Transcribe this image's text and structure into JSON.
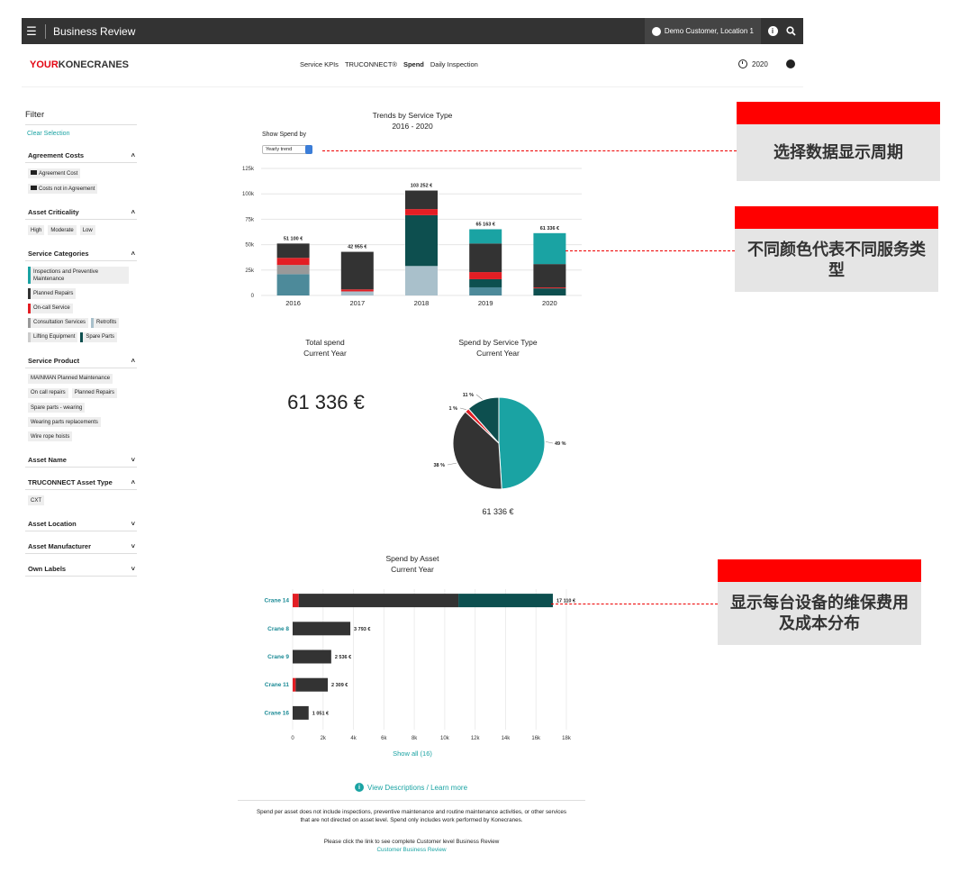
{
  "topbar": {
    "title": "Business Review",
    "customer": "Demo Customer, Location 1"
  },
  "header": {
    "logo_red": "YOUR",
    "logo_dark": "KONECRANES",
    "nav": [
      "Service KPIs",
      "TRUCONNECT®",
      "Spend",
      "Daily Inspection"
    ],
    "year": "2020"
  },
  "sidebar": {
    "title": "Filter",
    "clear": "Clear Selection",
    "agreement": {
      "title": "Agreement Costs",
      "items": [
        "Agreement Cost",
        "Costs not in Agreement"
      ]
    },
    "criticality": {
      "title": "Asset Criticality",
      "items": [
        "High",
        "Moderate",
        "Low"
      ]
    },
    "categories": {
      "title": "Service Categories",
      "items": [
        {
          "label": "Inspections and Preventive Maintenance",
          "color": "#1aa3a3"
        },
        {
          "label": "Planned Repairs",
          "color": "#333333"
        },
        {
          "label": "On-call Service",
          "color": "#e31e24"
        },
        {
          "label": "Consultation Services",
          "color": "#999999"
        },
        {
          "label": "Retrofits",
          "color": "#a9c0cb"
        },
        {
          "label": "Lifting Equipment",
          "color": "#cccccc"
        },
        {
          "label": "Spare Parts",
          "color": "#0d4f4f"
        }
      ]
    },
    "product": {
      "title": "Service Product",
      "items": [
        "MAINMAN Planned Maintenance",
        "On call repairs",
        "Planned Repairs",
        "Spare parts - wearing",
        "Wearing parts replacements",
        "Wire rope hoists"
      ]
    },
    "asset_name": {
      "title": "Asset Name"
    },
    "asset_type": {
      "title": "TRUCONNECT Asset Type",
      "items": [
        "CXT"
      ]
    },
    "asset_location": {
      "title": "Asset Location"
    },
    "asset_manufacturer": {
      "title": "Asset Manufacturer"
    },
    "own_labels": {
      "title": "Own Labels"
    }
  },
  "trends": {
    "title": "Trends by Service Type",
    "subtitle": "2016 - 2020",
    "show_by_label": "Show Spend by",
    "show_by_value": "Yearly trend"
  },
  "total": {
    "title": "Total spend",
    "subtitle": "Current Year",
    "value": "61 336 €"
  },
  "pie": {
    "title": "Spend by Service Type",
    "subtitle": "Current Year",
    "total": "61 336 €"
  },
  "asset": {
    "title": "Spend by Asset",
    "subtitle": "Current Year",
    "show_all": "Show all (16)"
  },
  "footer": {
    "view_desc": "View Descriptions / Learn more",
    "note1": "Spend per asset does not include inspections, preventive maintenance and routine maintenance activities, or other services",
    "note2": "that are not directed on asset level. Spend only includes work performed by Konecranes.",
    "link_text": "Please click the link to see complete Customer level Business Review",
    "link": "Customer Business Review"
  },
  "callouts": [
    "选择数据显示周期",
    "不同颜色代表不同服务类型",
    "显示每台设备的维保费用及成本分布"
  ],
  "chart_data": [
    {
      "type": "bar",
      "stacked": true,
      "title": "Trends by Service Type",
      "subtitle": "2016 - 2020",
      "categories": [
        "2016",
        "2017",
        "2018",
        "2019",
        "2020"
      ],
      "ylim": [
        0,
        125000
      ],
      "yticks": [
        0,
        25000,
        50000,
        75000,
        100000,
        125000
      ],
      "ytick_labels": [
        "0",
        "25k",
        "50k",
        "75k",
        "100k",
        "125k"
      ],
      "totals": [
        51100,
        42955,
        103252,
        65163,
        61336
      ],
      "total_labels": [
        "51 100 €",
        "42 955 €",
        "103 252 €",
        "65 163 €",
        "61 336 €"
      ],
      "series": [
        {
          "color": "#4d8a9a",
          "values": [
            21000,
            0,
            0,
            8000,
            0
          ]
        },
        {
          "color": "#a9c0cb",
          "values": [
            0,
            4000,
            29000,
            0,
            0
          ]
        },
        {
          "color": "#0d4f4f",
          "values": [
            0,
            0,
            50000,
            0,
            7000
          ]
        },
        {
          "color": "#0d4f4f",
          "values": [
            0,
            0,
            0,
            8000,
            0
          ]
        },
        {
          "color": "#e31e24",
          "values": [
            0,
            0,
            0,
            0,
            900
          ]
        },
        {
          "color": "#999999",
          "values": [
            9000,
            0,
            0,
            0,
            0
          ]
        },
        {
          "color": "#e31e24",
          "values": [
            7000,
            2000,
            6000,
            7000,
            0
          ]
        },
        {
          "color": "#333333",
          "values": [
            14100,
            36955,
            18252,
            28163,
            23000
          ]
        },
        {
          "color": "#1aa3a3",
          "values": [
            0,
            0,
            0,
            14000,
            30436
          ]
        }
      ]
    },
    {
      "type": "pie",
      "title": "Spend by Service Type",
      "subtitle": "Current Year",
      "slices": [
        {
          "label": "49 %",
          "value": 49,
          "color": "#1aa3a3"
        },
        {
          "label": "38 %",
          "value": 38,
          "color": "#333333"
        },
        {
          "label": "1 %",
          "value": 1.5,
          "color": "#e31e24"
        },
        {
          "label": "11 %",
          "value": 11.5,
          "color": "#0d4f4f"
        }
      ]
    },
    {
      "type": "bar",
      "orientation": "horizontal",
      "stacked": true,
      "title": "Spend by Asset",
      "subtitle": "Current Year",
      "categories": [
        "Crane 14",
        "Crane 8",
        "Crane 9",
        "Crane 11",
        "Crane 16"
      ],
      "xlim": [
        0,
        18000
      ],
      "xticks": [
        0,
        2000,
        4000,
        6000,
        8000,
        10000,
        12000,
        14000,
        16000,
        18000
      ],
      "xtick_labels": [
        "0",
        "2k",
        "4k",
        "6k",
        "8k",
        "10k",
        "12k",
        "14k",
        "16k",
        "18k"
      ],
      "value_labels": [
        "17 110 €",
        "3 793 €",
        "2 536 €",
        "2 309 €",
        "1 051 €"
      ],
      "series": [
        {
          "color": "#e31e24",
          "values": [
            400,
            0,
            0,
            200,
            0
          ]
        },
        {
          "color": "#333333",
          "values": [
            10500,
            3793,
            2536,
            2109,
            1051
          ]
        },
        {
          "color": "#0d4f4f",
          "values": [
            6210,
            0,
            0,
            0,
            0
          ]
        }
      ]
    }
  ]
}
